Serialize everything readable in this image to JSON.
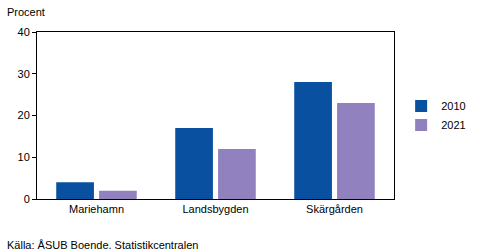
{
  "chart_data": {
    "type": "bar",
    "ylabel": "Procent",
    "annotations": [
      "Källa: ÅSUB Boende, Statistikcentralen"
    ],
    "categories": [
      "Mariehamn",
      "Landsbygden",
      "Skärgården"
    ],
    "series": [
      {
        "name": "2010",
        "color": "#0a50a1",
        "values": [
          4,
          17,
          28
        ]
      },
      {
        "name": "2021",
        "color": "#9181bf",
        "values": [
          2,
          12,
          23
        ]
      }
    ],
    "ylim": [
      0,
      40
    ],
    "yticks": [
      0,
      10,
      20,
      30,
      40
    ],
    "grid": false,
    "legend": "right"
  }
}
